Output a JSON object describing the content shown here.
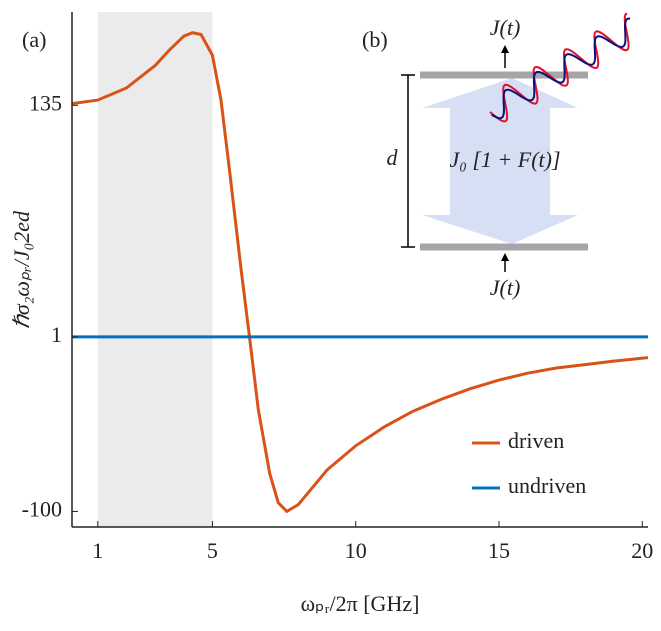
{
  "chart_data": {
    "type": "line",
    "xlabel": "ωₚᵣ/2π  [GHz]",
    "ylabel": "ℏσ₂ωₚᵣ/J₀2ed",
    "xlim": [
      0.1,
      20.2
    ],
    "xticks": [
      1,
      5,
      10,
      15,
      20
    ],
    "ylim": [
      -109,
      189
    ],
    "yticks": [
      135,
      1,
      -100
    ],
    "shaded_region": [
      1,
      5
    ],
    "legend": "lower right",
    "series": [
      {
        "name": "driven",
        "color": "#d95319",
        "x": [
          0.1,
          1,
          2,
          3,
          3.5,
          4,
          4.3,
          4.6,
          5,
          5.3,
          5.6,
          6,
          6.3,
          6.6,
          7,
          7.3,
          7.6,
          8,
          8.5,
          9,
          10,
          11,
          12,
          13,
          14,
          15,
          16,
          17,
          18,
          19,
          20.2
        ],
        "values": [
          136,
          138,
          145,
          158,
          167,
          175,
          177,
          176,
          164,
          138,
          97,
          40,
          0,
          -41,
          -78,
          -95,
          -100,
          -96,
          -86,
          -76,
          -62,
          -51,
          -42,
          -35,
          -29,
          -24,
          -20,
          -17,
          -15,
          -13,
          -11
        ]
      },
      {
        "name": "undriven",
        "color": "#0072bd",
        "x": [
          0.1,
          20.2
        ],
        "values": [
          1,
          1
        ]
      }
    ],
    "annotations": {
      "panel_a": "(a)",
      "panel_b": "(b)",
      "current_top": "J(t)",
      "current_bottom": "J(t)",
      "distance": "d",
      "coupling": "J₀ [1 + F(t)]"
    }
  }
}
